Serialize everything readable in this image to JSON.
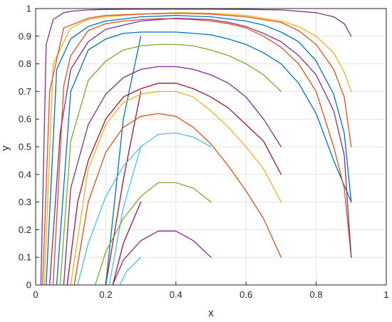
{
  "chart_data": {
    "type": "line",
    "title": "",
    "xlabel": "x",
    "ylabel": "y",
    "xlim": [
      0,
      1
    ],
    "ylim": [
      0,
      1
    ],
    "xticks": [
      0,
      0.2,
      0.4,
      0.6,
      0.8,
      1
    ],
    "xtick_labels": [
      "0",
      "0.2",
      "0.4",
      "0.6",
      "0.8",
      "1"
    ],
    "yticks": [
      0,
      0.1,
      0.2,
      0.3,
      0.4,
      0.5,
      0.6,
      0.7,
      0.8,
      0.9,
      1
    ],
    "ytick_labels": [
      "0",
      "0.1",
      "0.2",
      "0.3",
      "0.4",
      "0.5",
      "0.6",
      "0.7",
      "0.8",
      "0.9",
      "1"
    ],
    "grid": true,
    "legend": "none",
    "palette": [
      "#0072BD",
      "#D95319",
      "#EDB120",
      "#7E2F8E",
      "#77AC30",
      "#4DBEEE",
      "#A2142F"
    ],
    "series": [
      {
        "color": "#4DBEEE",
        "x": [
          0.24,
          0.26,
          0.3
        ],
        "y": [
          0.0,
          0.05,
          0.1
        ]
      },
      {
        "color": "#A2142F",
        "x": [
          0.22,
          0.25,
          0.3
        ],
        "y": [
          0.0,
          0.15,
          0.3
        ]
      },
      {
        "color": "#4DBEEE",
        "x": [
          0.21,
          0.25,
          0.3
        ],
        "y": [
          0.0,
          0.28,
          0.5
        ]
      },
      {
        "color": "#A2142F",
        "x": [
          0.2,
          0.25,
          0.3
        ],
        "y": [
          0.0,
          0.38,
          0.7
        ]
      },
      {
        "color": "#0072BD",
        "x": [
          0.2,
          0.25,
          0.3
        ],
        "y": [
          0.0,
          0.6,
          0.9
        ]
      },
      {
        "color": "#7E2F8E",
        "x": [
          0.22,
          0.25,
          0.3,
          0.35,
          0.4,
          0.45,
          0.5
        ],
        "y": [
          0.0,
          0.09,
          0.16,
          0.195,
          0.195,
          0.16,
          0.1
        ]
      },
      {
        "color": "#77AC30",
        "x": [
          0.17,
          0.2,
          0.25,
          0.3,
          0.35,
          0.4,
          0.45,
          0.5
        ],
        "y": [
          0.0,
          0.12,
          0.24,
          0.32,
          0.37,
          0.37,
          0.35,
          0.3
        ]
      },
      {
        "color": "#4DBEEE",
        "x": [
          0.12,
          0.15,
          0.2,
          0.25,
          0.3,
          0.35,
          0.4,
          0.45,
          0.5
        ],
        "y": [
          0.0,
          0.15,
          0.32,
          0.43,
          0.5,
          0.545,
          0.55,
          0.535,
          0.5
        ]
      },
      {
        "color": "#D95319",
        "x": [
          0.11,
          0.15,
          0.2,
          0.25,
          0.3,
          0.35,
          0.4,
          0.45,
          0.5,
          0.55,
          0.6,
          0.65,
          0.7
        ],
        "y": [
          0.0,
          0.3,
          0.48,
          0.57,
          0.61,
          0.62,
          0.61,
          0.57,
          0.51,
          0.43,
          0.34,
          0.24,
          0.1
        ]
      },
      {
        "color": "#EDB120",
        "x": [
          0.1,
          0.15,
          0.2,
          0.25,
          0.3,
          0.35,
          0.4,
          0.45,
          0.5,
          0.55,
          0.6,
          0.65,
          0.7
        ],
        "y": [
          0.0,
          0.42,
          0.58,
          0.66,
          0.69,
          0.7,
          0.7,
          0.68,
          0.63,
          0.57,
          0.5,
          0.42,
          0.3
        ]
      },
      {
        "color": "#A2142F",
        "x": [
          0.09,
          0.12,
          0.15,
          0.2,
          0.25,
          0.3,
          0.35,
          0.4,
          0.45,
          0.5,
          0.55,
          0.6,
          0.65,
          0.7
        ],
        "y": [
          0.0,
          0.3,
          0.45,
          0.6,
          0.68,
          0.71,
          0.73,
          0.73,
          0.71,
          0.68,
          0.64,
          0.58,
          0.52,
          0.4
        ]
      },
      {
        "color": "#7E2F8E",
        "x": [
          0.08,
          0.1,
          0.15,
          0.2,
          0.25,
          0.3,
          0.35,
          0.4,
          0.45,
          0.5,
          0.55,
          0.6,
          0.65,
          0.7
        ],
        "y": [
          0.0,
          0.35,
          0.58,
          0.69,
          0.75,
          0.78,
          0.79,
          0.79,
          0.78,
          0.76,
          0.73,
          0.68,
          0.6,
          0.5
        ]
      },
      {
        "color": "#77AC30",
        "x": [
          0.07,
          0.1,
          0.15,
          0.2,
          0.25,
          0.3,
          0.35,
          0.4,
          0.45,
          0.5,
          0.55,
          0.6,
          0.65,
          0.7
        ],
        "y": [
          0.0,
          0.52,
          0.74,
          0.81,
          0.85,
          0.865,
          0.87,
          0.87,
          0.865,
          0.85,
          0.83,
          0.8,
          0.76,
          0.7
        ]
      },
      {
        "color": "#0072BD",
        "x": [
          0.06,
          0.1,
          0.15,
          0.2,
          0.25,
          0.3,
          0.35,
          0.4,
          0.45,
          0.5,
          0.55,
          0.6,
          0.65,
          0.7,
          0.75,
          0.8,
          0.85,
          0.9
        ],
        "y": [
          0.0,
          0.7,
          0.85,
          0.89,
          0.91,
          0.915,
          0.915,
          0.915,
          0.91,
          0.905,
          0.89,
          0.87,
          0.84,
          0.8,
          0.73,
          0.62,
          0.45,
          0.3
        ]
      },
      {
        "color": "#D95319",
        "x": [
          0.05,
          0.08,
          0.1,
          0.15,
          0.2,
          0.25,
          0.3,
          0.35,
          0.4,
          0.45,
          0.5,
          0.55,
          0.6,
          0.65,
          0.7,
          0.75,
          0.8,
          0.85,
          0.88,
          0.9
        ],
        "y": [
          0.0,
          0.72,
          0.83,
          0.92,
          0.945,
          0.955,
          0.96,
          0.963,
          0.963,
          0.96,
          0.955,
          0.945,
          0.93,
          0.9,
          0.86,
          0.8,
          0.7,
          0.5,
          0.35,
          0.1
        ]
      },
      {
        "color": "#7E2F8E",
        "x": [
          0.04,
          0.07,
          0.1,
          0.15,
          0.2,
          0.3,
          0.4,
          0.5,
          0.55,
          0.6,
          0.65,
          0.7,
          0.75,
          0.8,
          0.85,
          0.88,
          0.9
        ],
        "y": [
          0.0,
          0.55,
          0.78,
          0.88,
          0.925,
          0.955,
          0.965,
          0.96,
          0.95,
          0.935,
          0.91,
          0.88,
          0.83,
          0.76,
          0.63,
          0.47,
          0.1
        ]
      },
      {
        "color": "#0072BD",
        "x": [
          0.03,
          0.06,
          0.1,
          0.15,
          0.2,
          0.3,
          0.4,
          0.5,
          0.6,
          0.65,
          0.7,
          0.75,
          0.8,
          0.85,
          0.88,
          0.9
        ],
        "y": [
          0.0,
          0.78,
          0.89,
          0.935,
          0.955,
          0.97,
          0.975,
          0.97,
          0.955,
          0.94,
          0.915,
          0.88,
          0.81,
          0.69,
          0.55,
          0.3
        ]
      },
      {
        "color": "#EDB120",
        "x": [
          0.025,
          0.05,
          0.1,
          0.15,
          0.2,
          0.3,
          0.4,
          0.5,
          0.6,
          0.7,
          0.75,
          0.8,
          0.85,
          0.88,
          0.9
        ],
        "y": [
          0.0,
          0.8,
          0.93,
          0.96,
          0.97,
          0.98,
          0.985,
          0.983,
          0.975,
          0.955,
          0.935,
          0.9,
          0.84,
          0.77,
          0.7
        ]
      },
      {
        "color": "#D95319",
        "x": [
          0.02,
          0.04,
          0.08,
          0.15,
          0.2,
          0.3,
          0.4,
          0.5,
          0.6,
          0.7,
          0.75,
          0.8,
          0.85,
          0.88,
          0.9
        ],
        "y": [
          0.0,
          0.7,
          0.93,
          0.965,
          0.975,
          0.98,
          0.983,
          0.98,
          0.97,
          0.95,
          0.92,
          0.87,
          0.78,
          0.68,
          0.5
        ]
      },
      {
        "color": "#7E2F8E",
        "x": [
          0.015,
          0.03,
          0.05,
          0.08,
          0.1,
          0.15,
          0.2,
          0.3,
          0.4,
          0.5,
          0.6,
          0.7,
          0.8,
          0.85,
          0.88,
          0.9
        ],
        "y": [
          0.0,
          0.87,
          0.96,
          0.985,
          0.99,
          0.995,
          0.997,
          0.998,
          0.998,
          0.998,
          0.997,
          0.995,
          0.985,
          0.97,
          0.945,
          0.9
        ]
      }
    ]
  }
}
